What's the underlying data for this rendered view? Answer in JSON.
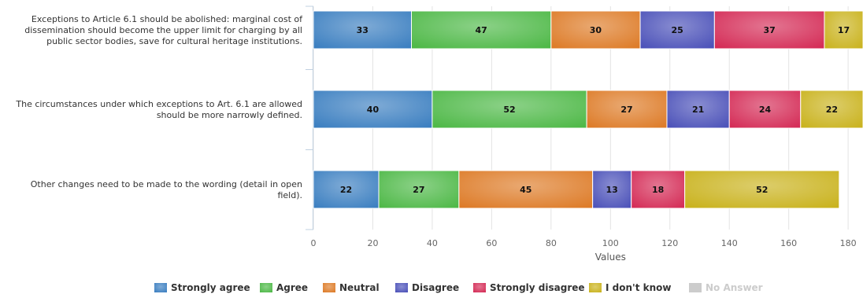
{
  "chart_data": {
    "type": "bar",
    "orientation": "horizontal",
    "stacked": true,
    "categories": [
      "Exceptions to Article 6.1 should be abolished: marginal cost of dissemination should become the upper limit for charging by all public sector bodies, save for cultural heritage institutions.",
      "The circumstances under which exceptions to Art. 6.1 are allowed should be more narrowly defined.",
      "Other changes need to be made to the wording (detail in open field)."
    ],
    "series": [
      {
        "name": "Strongly agree",
        "color": "#3a7ec0",
        "values": [
          33,
          40,
          22
        ]
      },
      {
        "name": "Agree",
        "color": "#4db846",
        "values": [
          47,
          52,
          27
        ]
      },
      {
        "name": "Neutral",
        "color": "#dd7a26",
        "values": [
          30,
          27,
          45
        ]
      },
      {
        "name": "Disagree",
        "color": "#4a50b8",
        "values": [
          25,
          21,
          13
        ]
      },
      {
        "name": "Strongly disagree",
        "color": "#d42a55",
        "values": [
          37,
          24,
          18
        ]
      },
      {
        "name": "I don't know",
        "color": "#c9b21c",
        "values": [
          17,
          22,
          52
        ]
      },
      {
        "name": "No Answer",
        "color": "#cccccc",
        "values": [
          0,
          0,
          0
        ],
        "disabled": true
      }
    ],
    "xlabel": "Values",
    "xlim": [
      0,
      185
    ],
    "xticks": [
      0,
      20,
      40,
      60,
      80,
      100,
      120,
      140,
      160,
      180
    ],
    "grid": true,
    "legend": "bottom-center"
  }
}
